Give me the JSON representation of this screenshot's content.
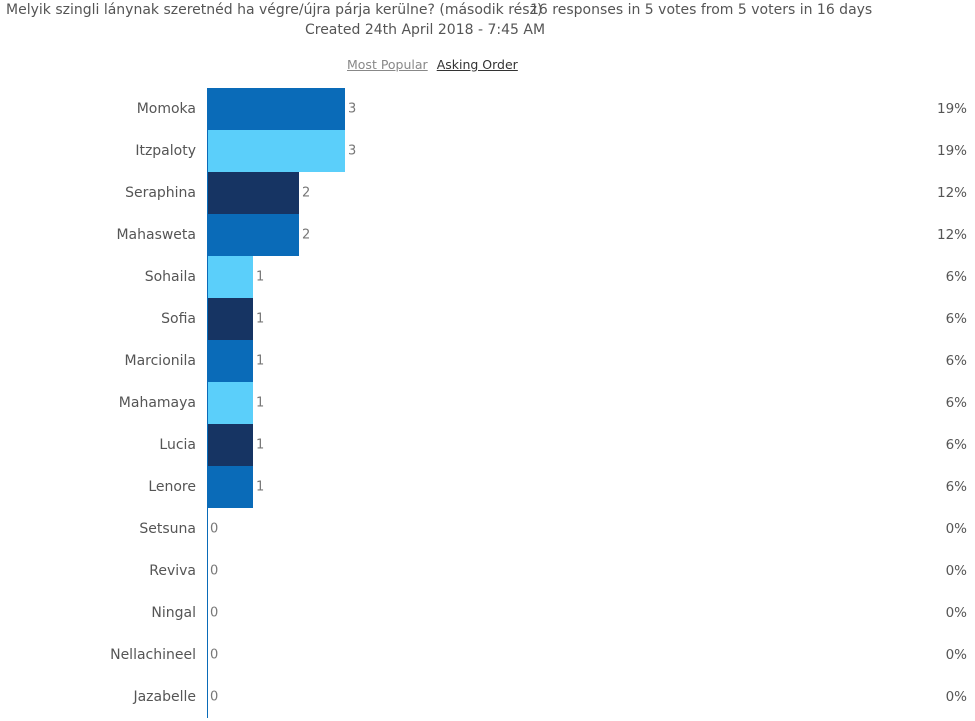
{
  "header": {
    "title": "Melyik szingli lánynak szeretnéd ha végre/újra párja kerülne? (második rész)",
    "stats": "16 responses in 5 votes from 5 voters in 16 days",
    "created": "Created 24th April 2018 - 7:45 AM"
  },
  "sort": {
    "most_popular": "Most Popular",
    "asking_order": "Asking Order"
  },
  "colors": {
    "medium_blue": "#0a6bb8",
    "light_blue": "#5bcffa",
    "dark_navy": "#163463",
    "axis": "#0a6bb8",
    "label_text": "#555555"
  },
  "chart_data": {
    "type": "bar",
    "orientation": "horizontal",
    "categories": [
      "Momoka",
      "Itzpaloty",
      "Seraphina",
      "Mahasweta",
      "Sohaila",
      "Sofia",
      "Marcionila",
      "Mahamaya",
      "Lucia",
      "Lenore",
      "Setsuna",
      "Reviva",
      "Ningal",
      "Nellachineel",
      "Jazabelle"
    ],
    "values": [
      3,
      3,
      2,
      2,
      1,
      1,
      1,
      1,
      1,
      1,
      0,
      0,
      0,
      0,
      0
    ],
    "percentages": [
      "19%",
      "19%",
      "12%",
      "12%",
      "6%",
      "6%",
      "6%",
      "6%",
      "6%",
      "6%",
      "0%",
      "0%",
      "0%",
      "0%",
      "0%"
    ],
    "bar_colors": [
      "#0a6bb8",
      "#5bcffa",
      "#163463",
      "#0a6bb8",
      "#5bcffa",
      "#163463",
      "#0a6bb8",
      "#5bcffa",
      "#163463",
      "#0a6bb8",
      "#5bcffa",
      "#163463",
      "#0a6bb8",
      "#5bcffa",
      "#163463"
    ],
    "xlim": [
      0,
      3
    ],
    "grid": false,
    "legend": "none"
  }
}
